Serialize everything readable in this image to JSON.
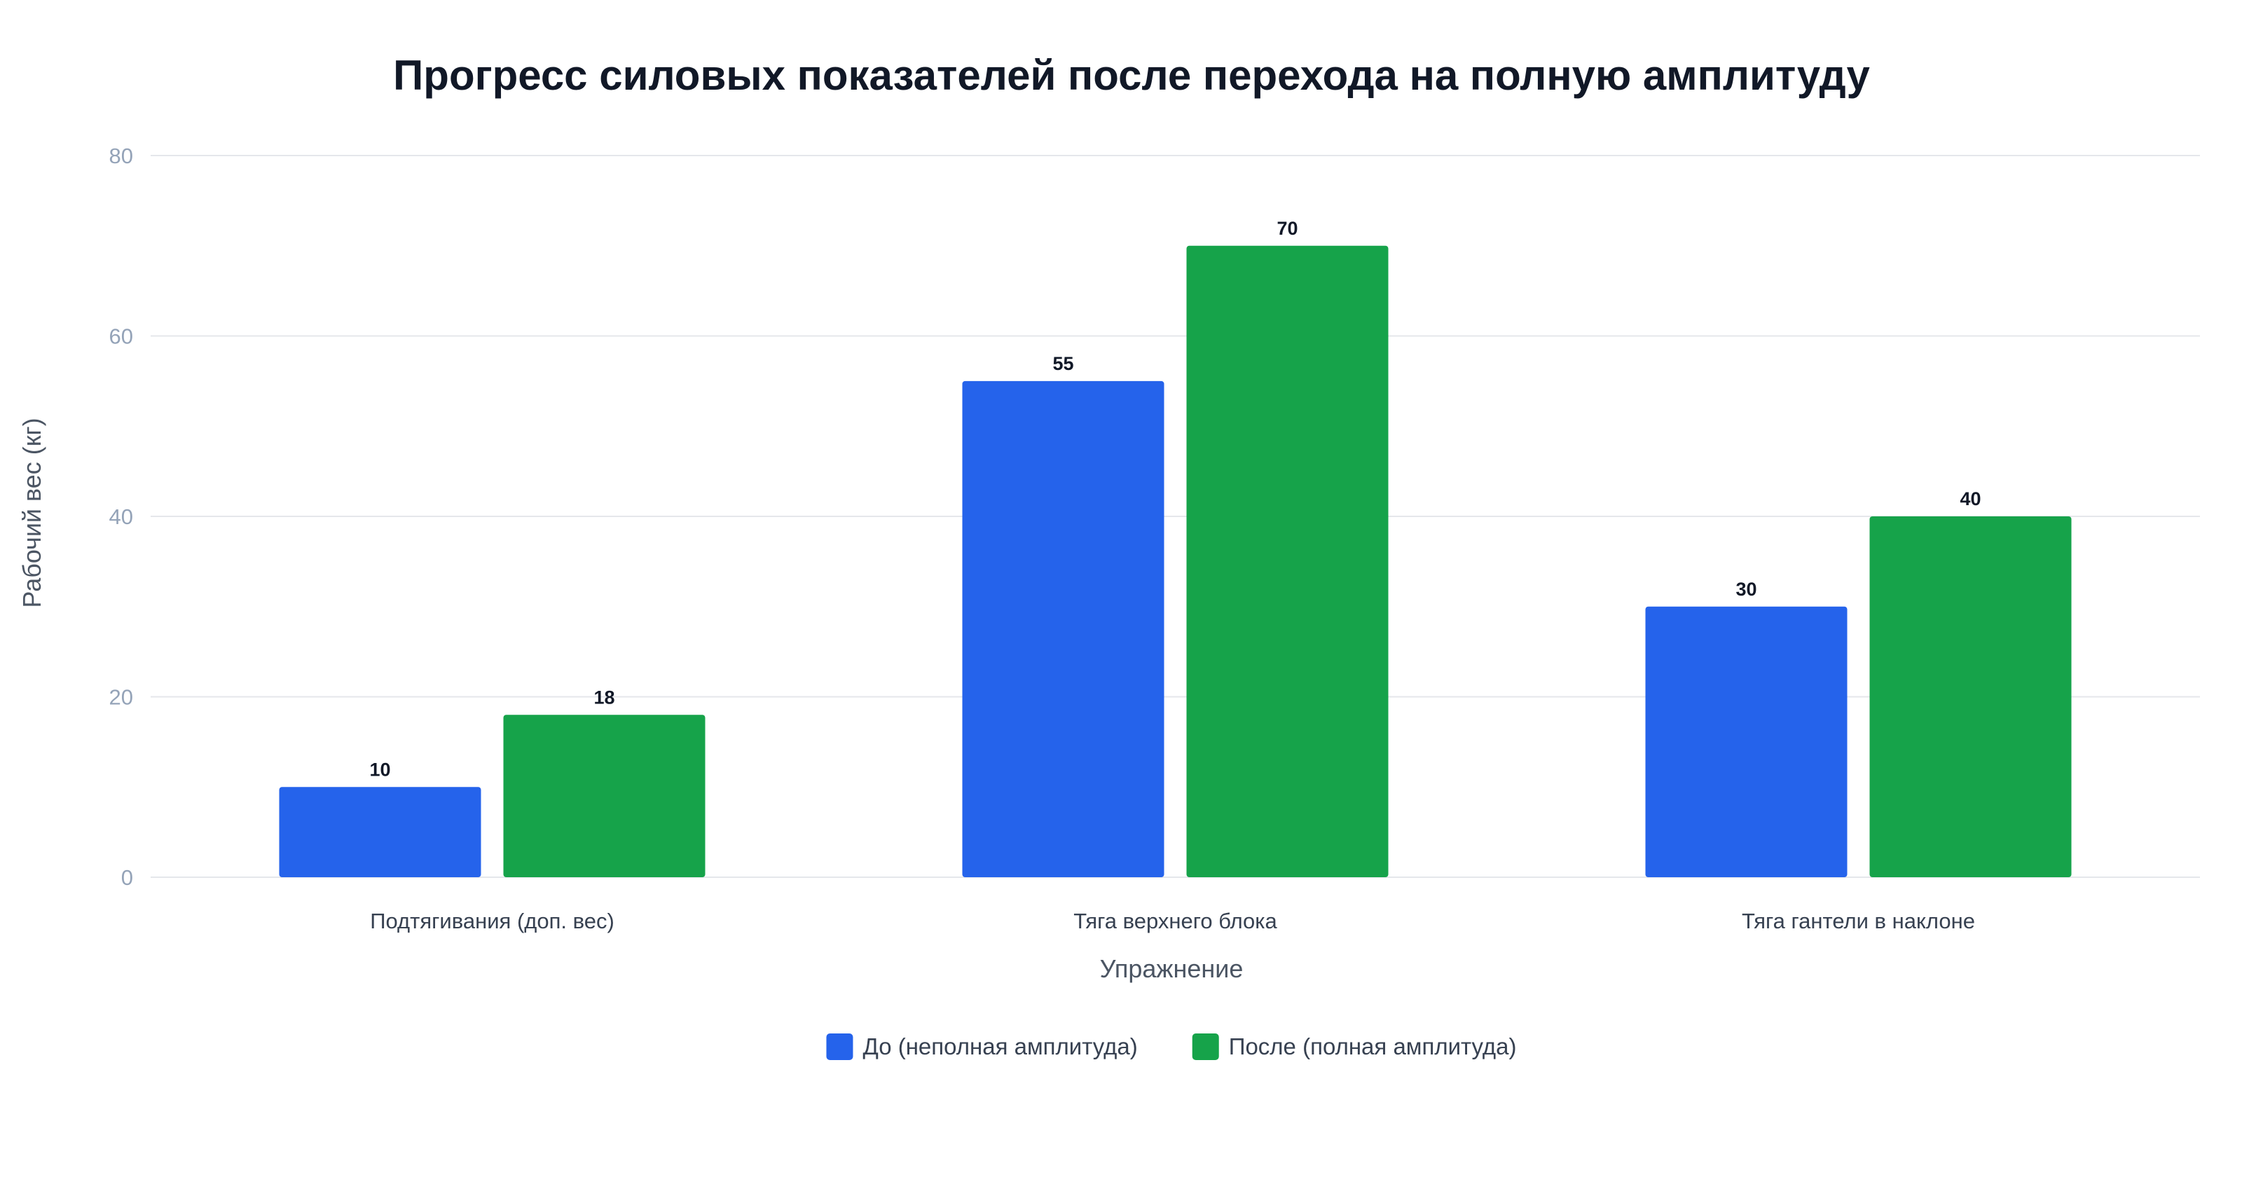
{
  "chart_data": {
    "type": "bar",
    "title": "Прогресс силовых показателей после перехода на полную амплитуду",
    "xlabel": "Упражнение",
    "ylabel": "Рабочий вес (кг)",
    "ylim": [
      0,
      80
    ],
    "yticks": [
      0,
      20,
      40,
      60,
      80
    ],
    "grid": true,
    "legend_position": "bottom",
    "categories": [
      "Подтягивания (доп. вес)",
      "Тяга верхнего блока",
      "Тяга гантели в наклоне"
    ],
    "series": [
      {
        "name": "До (неполная амплитуда)",
        "color": "#2563eb",
        "values": [
          10,
          55,
          30
        ]
      },
      {
        "name": "После (полная амплитуда)",
        "color": "#16a34a",
        "values": [
          18,
          70,
          40
        ]
      }
    ],
    "data_labels": true
  }
}
